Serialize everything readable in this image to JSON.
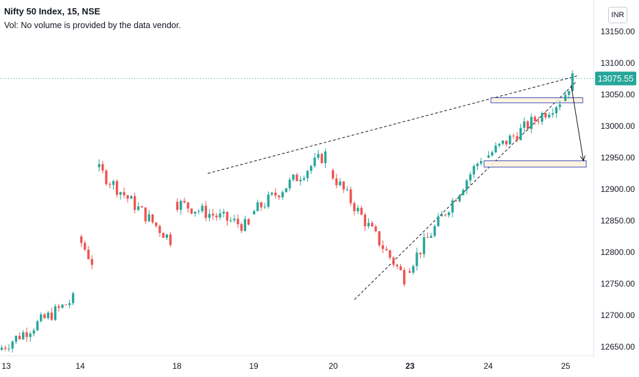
{
  "legend": {
    "title": "Nifty 50 Index, 15, NSE",
    "volume_note": "Vol: No volume is provided by the data vendor."
  },
  "currency_button": "INR",
  "colors": {
    "up": "#26a69a",
    "down": "#ef5350",
    "price_badge": "#26a69a",
    "grid_line": "#26a69a",
    "rectangle_border": "#3f51b5",
    "rectangle_fill": "#fdf1dc"
  },
  "chart_data": {
    "type": "candlestick",
    "symbol": "Nifty 50 Index",
    "interval": "15",
    "exchange": "NSE",
    "ylim": [
      12640,
      13195
    ],
    "y_ticks": [
      "13150.00",
      "13100.00",
      "13050.00",
      "13000.00",
      "12950.00",
      "12900.00",
      "12850.00",
      "12800.00",
      "12750.00",
      "12700.00",
      "12650.00"
    ],
    "x_ticks": [
      {
        "label": "13",
        "bold": false
      },
      {
        "label": "14",
        "bold": false
      },
      {
        "label": "18",
        "bold": false
      },
      {
        "label": "19",
        "bold": false
      },
      {
        "label": "20",
        "bold": false
      },
      {
        "label": "23",
        "bold": true
      },
      {
        "label": "24",
        "bold": false
      },
      {
        "label": "25",
        "bold": false
      }
    ],
    "last_price": "13075.55",
    "approx_close_path": [
      {
        "session": "13",
        "start": 12645,
        "end": 12725
      },
      {
        "session": "14",
        "start": 12825,
        "end": 12785
      },
      {
        "session": "17",
        "start": 12935,
        "end": 12820
      },
      {
        "session": "18",
        "start": 12880,
        "end": 12840
      },
      {
        "session": "19",
        "start": 12860,
        "end": 12955
      },
      {
        "session": "20",
        "start": 12930,
        "end": 12760
      },
      {
        "session": "23",
        "start": 12770,
        "end": 12950
      },
      {
        "session": "24",
        "start": 12950,
        "end": 13040
      },
      {
        "session": "25",
        "start": 13040,
        "end": 13075.55
      }
    ],
    "annotations": [
      {
        "type": "trendline",
        "style": "dashed",
        "from_price": 12925,
        "to_price": 13080
      },
      {
        "type": "trendline",
        "style": "dashed",
        "from_price": 12725,
        "to_price": 13070
      },
      {
        "type": "rectangle",
        "price_top": 13045,
        "price_bottom": 13037
      },
      {
        "type": "rectangle",
        "price_top": 12945,
        "price_bottom": 12935
      },
      {
        "type": "arrow",
        "from_price": 13065,
        "to_price": 12945
      }
    ]
  }
}
